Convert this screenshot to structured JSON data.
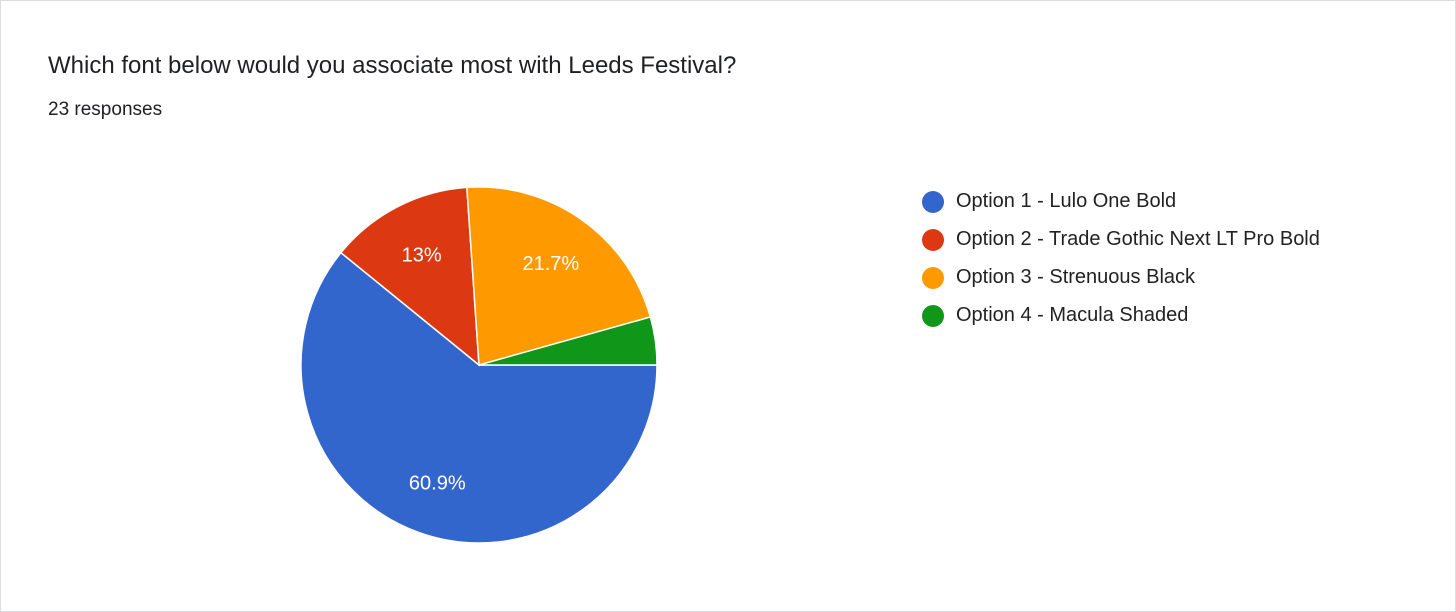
{
  "header": {
    "title": "Which font below would you associate most with Leeds Festival?",
    "responses": "23 responses"
  },
  "chart_data": {
    "type": "pie",
    "title": "Which font below would you associate most with Leeds Festival?",
    "total_responses": 23,
    "legend_position": "right",
    "start_angle_deg": 90,
    "slices": [
      {
        "label": "Option 1 - Lulo One Bold",
        "count": 14,
        "percent": 60.9,
        "data_label": "60.9%",
        "color": "#3366cc"
      },
      {
        "label": "Option 2 - Trade Gothic Next LT Pro Bold",
        "count": 3,
        "percent": 13,
        "data_label": "13%",
        "color": "#dc3912"
      },
      {
        "label": "Option 3 - Strenuous Black",
        "count": 5,
        "percent": 21.7,
        "data_label": "21.7%",
        "color": "#ff9900"
      },
      {
        "label": "Option 4 - Macula Shaded",
        "count": 1,
        "percent": 4.3,
        "data_label": "",
        "color": "#109618"
      }
    ]
  }
}
